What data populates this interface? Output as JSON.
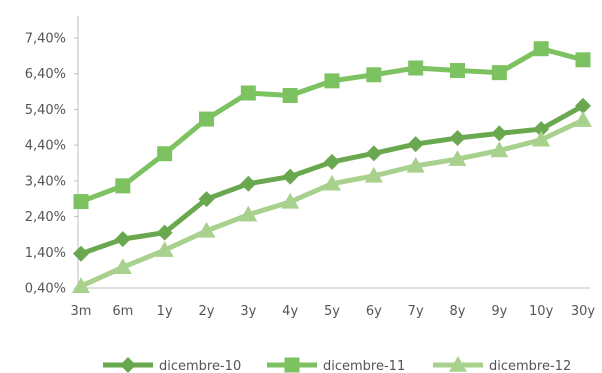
{
  "chart_data": {
    "type": "line",
    "title": "",
    "xlabel": "",
    "ylabel": "",
    "x": [
      "3m",
      "6m",
      "1y",
      "2y",
      "3y",
      "4y",
      "5y",
      "6y",
      "7y",
      "8y",
      "9y",
      "10y",
      "30y"
    ],
    "y_ticks": [
      "0,40%",
      "1,40%",
      "2,40%",
      "3,40%",
      "4,40%",
      "5,40%",
      "6,40%",
      "7,40%"
    ],
    "ylim": [
      0.4,
      7.4
    ],
    "grid": false,
    "legend_position": "bottom",
    "series": [
      {
        "name": "dicembre-10",
        "marker": "diamond",
        "color": "#6aa84f",
        "values": [
          1.36,
          1.77,
          1.95,
          2.89,
          3.32,
          3.52,
          3.93,
          4.17,
          4.43,
          4.6,
          4.73,
          4.85,
          5.5
        ]
      },
      {
        "name": "dicembre-11",
        "marker": "square",
        "color": "#7dc260",
        "values": [
          2.82,
          3.26,
          4.16,
          5.13,
          5.86,
          5.79,
          6.2,
          6.37,
          6.56,
          6.49,
          6.43,
          7.1,
          6.79
        ]
      },
      {
        "name": "dicembre-12",
        "marker": "triangle",
        "color": "#a9d18e",
        "values": [
          0.45,
          0.98,
          1.46,
          2.0,
          2.45,
          2.81,
          3.32,
          3.54,
          3.82,
          4.01,
          4.25,
          4.55,
          5.1
        ]
      }
    ]
  }
}
